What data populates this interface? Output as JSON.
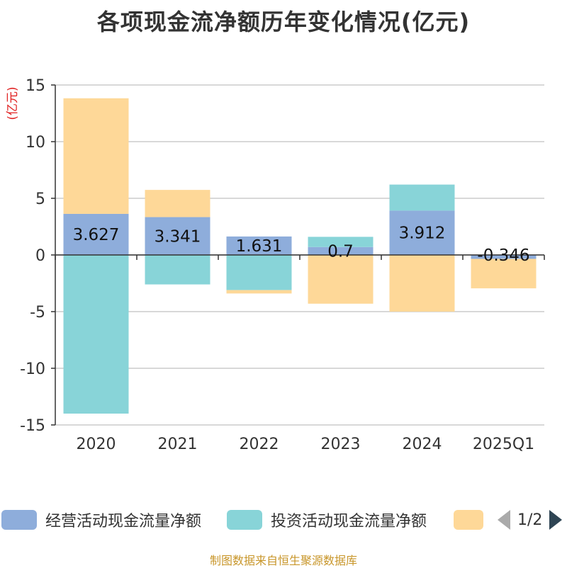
{
  "title": "各项现金流净额历年变化情况(亿元)",
  "footer": "制图数据来自恒生聚源数据库",
  "legend_page": "1/2",
  "colors": {
    "operating": "#8eaddb",
    "investing": "#88d4d8",
    "financing": "#fed898",
    "grid": "#cccccc",
    "axis": "#333333"
  },
  "chart_data": {
    "type": "bar",
    "stacked": true,
    "unit_label": "(亿元)",
    "categories": [
      "2020",
      "2021",
      "2022",
      "2023",
      "2024",
      "2025Q1"
    ],
    "ylim": [
      -15,
      15
    ],
    "yticks": [
      15,
      10,
      5,
      0,
      -5,
      -10,
      -15
    ],
    "grid": true,
    "legend_position": "bottom",
    "series": [
      {
        "name": "经营活动现金流量净额",
        "values": [
          3.627,
          3.341,
          1.631,
          0.7,
          3.912,
          -0.346
        ]
      },
      {
        "name": "投资活动现金流量净额",
        "values": [
          -14.0,
          -2.6,
          -3.1,
          0.9,
          2.3,
          0.0
        ]
      },
      {
        "name": "",
        "values": [
          10.2,
          2.4,
          -0.3,
          -4.3,
          -5.0,
          -2.6
        ]
      }
    ],
    "data_labels": [
      "3.627",
      "3.341",
      "1.631",
      "0.7",
      "3.912",
      "-0.346"
    ]
  }
}
